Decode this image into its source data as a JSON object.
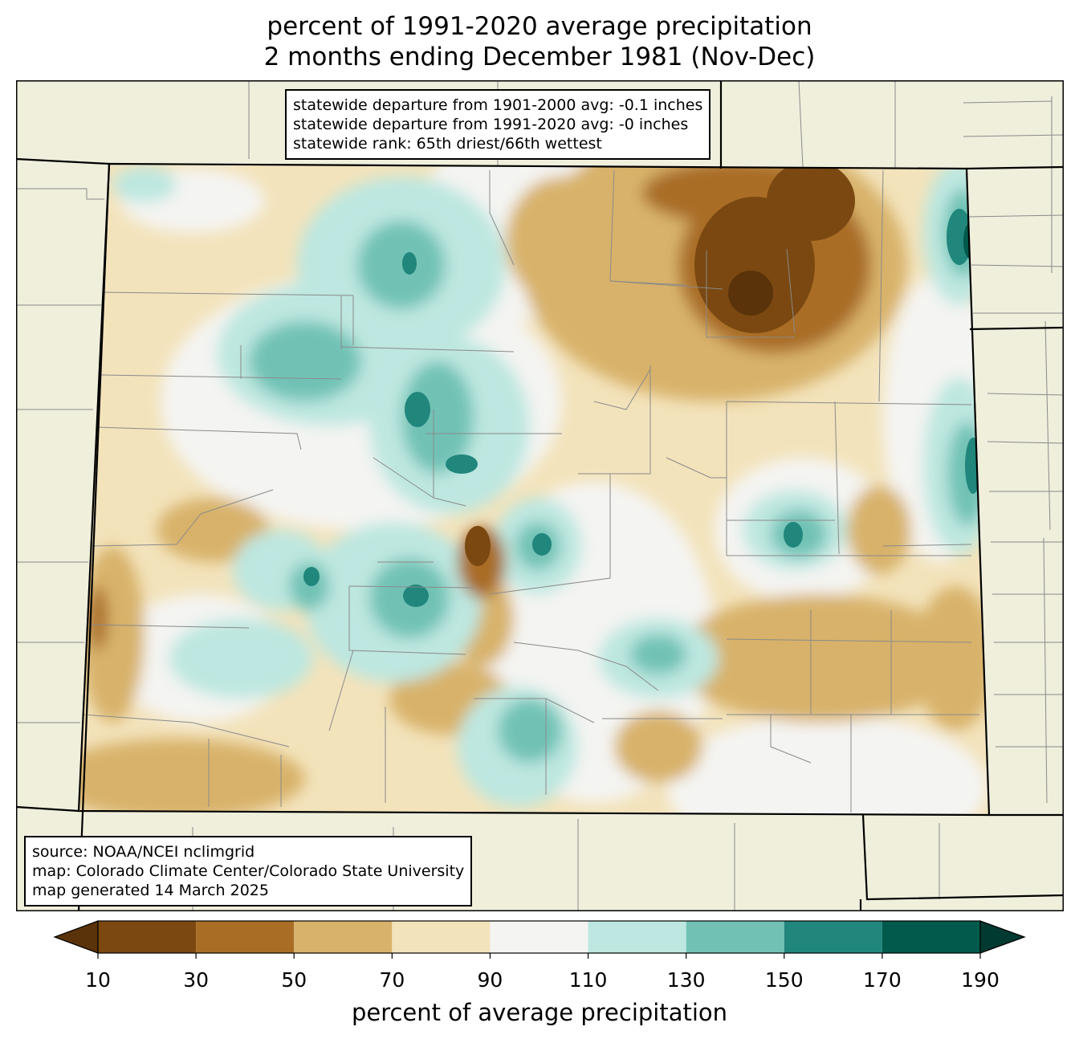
{
  "title": {
    "line1": "percent of 1991-2020 average precipitation",
    "line2": "2 months ending December 1981 (Nov-Dec)"
  },
  "stats": {
    "line1": "statewide departure from 1901-2000 avg: -0.1 inches",
    "line2": "statewide departure from 1991-2020 avg: -0 inches",
    "line3": "statewide rank: 65th driest/66th wettest"
  },
  "source": {
    "line1": "source: NOAA/NCEI nclimgrid",
    "line2": "map: Colorado Climate Center/Colorado State University",
    "line3": "map generated 14 March 2025"
  },
  "colorbar": {
    "label": "percent of average precipitation",
    "ticks": [
      "10",
      "30",
      "50",
      "70",
      "90",
      "110",
      "130",
      "150",
      "170",
      "190"
    ],
    "bins": [
      {
        "from": 10,
        "to": 30,
        "color": "#7a4810"
      },
      {
        "from": 30,
        "to": 50,
        "color": "#a96d25"
      },
      {
        "from": 50,
        "to": 70,
        "color": "#d8b26b"
      },
      {
        "from": 70,
        "to": 90,
        "color": "#f3e3bb"
      },
      {
        "from": 90,
        "to": 110,
        "color": "#f4f4f2"
      },
      {
        "from": 110,
        "to": 130,
        "color": "#bde7e0"
      },
      {
        "from": 130,
        "to": 150,
        "color": "#71c2b5"
      },
      {
        "from": 150,
        "to": 170,
        "color": "#21867c"
      },
      {
        "from": 170,
        "to": 190,
        "color": "#015a4c"
      }
    ],
    "under_color": "#5a330a",
    "over_color": "#013a30"
  },
  "map_colors": {
    "land": "#efefdc",
    "county_lines": "#8a8a8a",
    "state_lines": "#000000"
  }
}
